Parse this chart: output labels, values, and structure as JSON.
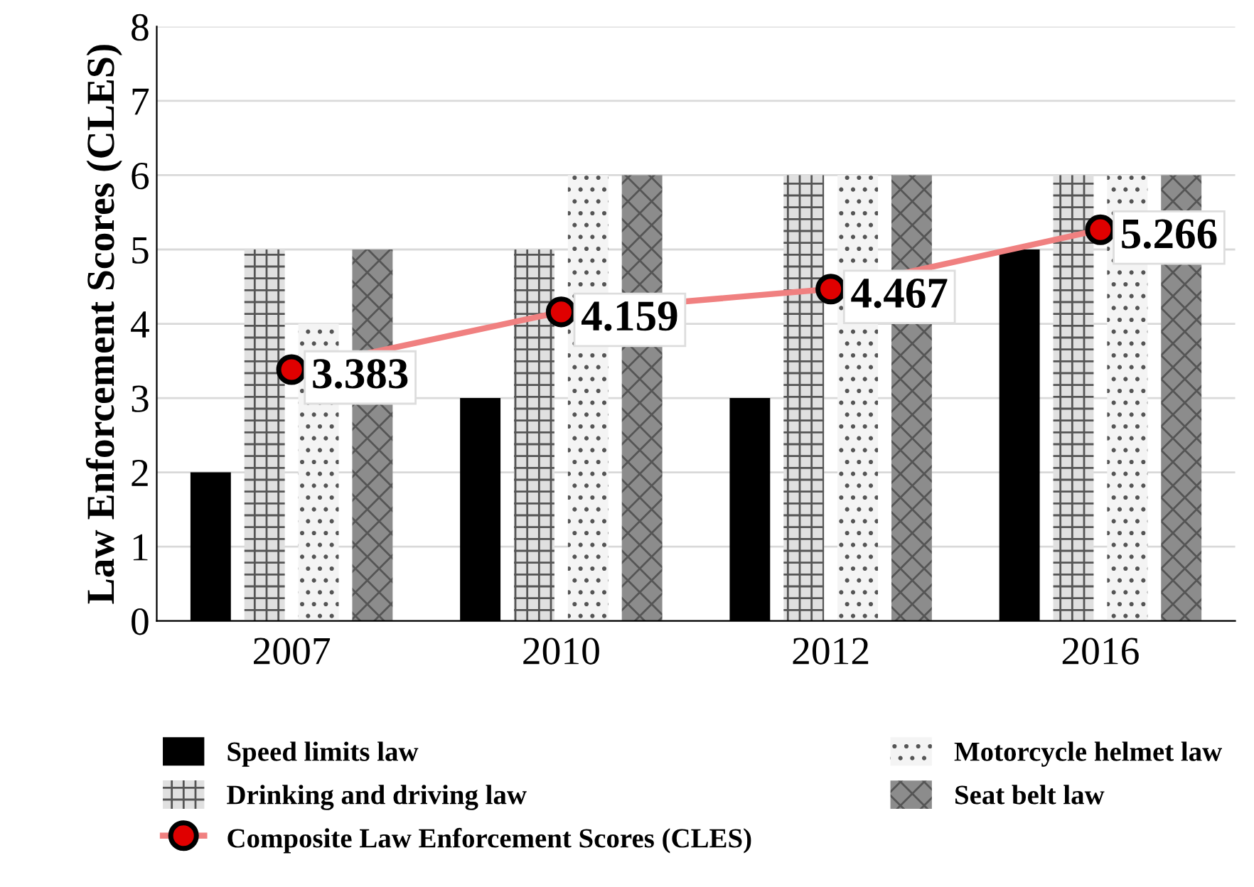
{
  "chart_data": {
    "type": "bar",
    "ylabel": "Law Enforcement Scores (CLES)",
    "categories": [
      "2007",
      "2010",
      "2012",
      "2016"
    ],
    "series": [
      {
        "name": "Speed limits law",
        "color": "#000000",
        "values": [
          2,
          3,
          3,
          5
        ]
      },
      {
        "name": "Drinking and driving law",
        "color": "#e0e0e0",
        "values": [
          5,
          5,
          6,
          6
        ]
      },
      {
        "name": "Motorcycle helmet law",
        "color": "#f4f4f4",
        "values": [
          4,
          6,
          6,
          6
        ]
      },
      {
        "name": "Seat belt law",
        "color": "#8c8c8c",
        "values": [
          5,
          6,
          6,
          6
        ]
      },
      {
        "name": "Composite Law Enforcement Scores (CLES)",
        "type": "line",
        "color": "#f08080",
        "marker": "circle",
        "values": [
          3.383,
          4.159,
          4.467,
          5.266
        ],
        "value_labels": [
          "3.383",
          "4.159",
          "4.467",
          "5.266"
        ]
      }
    ],
    "ylim": [
      0,
      8
    ],
    "yticks": [
      0,
      1,
      2,
      3,
      4,
      5,
      6,
      7,
      8
    ],
    "grid": "y",
    "legend": "bottom"
  }
}
